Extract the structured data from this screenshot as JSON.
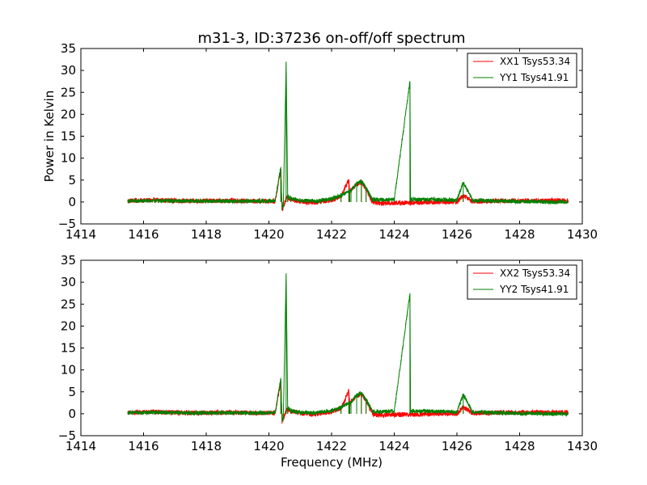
{
  "title": "m31-3, ID:37236 on-off/off spectrum",
  "chart_data": [
    {
      "type": "line",
      "title": "m31-3, ID:37236 on-off/off spectrum",
      "xlabel": "",
      "ylabel": "Power in Kelvin",
      "xlim": [
        1414,
        1430
      ],
      "ylim": [
        -5,
        35
      ],
      "xticks": [
        1414,
        1416,
        1418,
        1420,
        1422,
        1424,
        1426,
        1428,
        1430
      ],
      "yticks": [
        -5,
        0,
        5,
        10,
        15,
        20,
        25,
        30,
        35
      ],
      "legend_position": "top-right",
      "grid": false,
      "series": [
        {
          "name": "XX1 Tsys53.34",
          "color": "#ff0000",
          "x": [
            1415.5,
            1416.5,
            1417.5,
            1418.5,
            1419.5,
            1420.2,
            1420.38,
            1420.42,
            1420.46,
            1420.55,
            1420.6,
            1420.7,
            1421.0,
            1421.5,
            1422.0,
            1422.3,
            1422.55,
            1422.58,
            1422.62,
            1422.8,
            1422.95,
            1423.1,
            1423.3,
            1423.6,
            1424.0,
            1424.5,
            1425.0,
            1425.5,
            1426.0,
            1426.2,
            1426.5,
            1427.0,
            1427.5,
            1428.0,
            1428.5,
            1429.0,
            1429.55
          ],
          "values": [
            0.3,
            0.4,
            0.2,
            0.3,
            0.2,
            0.2,
            7.5,
            -1.8,
            -1.2,
            0.8,
            1.0,
            0.6,
            0.1,
            -0.1,
            0.5,
            1.2,
            5.2,
            2.0,
            2.8,
            4.0,
            4.5,
            3.0,
            0.0,
            -0.3,
            -0.2,
            -0.2,
            -0.1,
            0.0,
            0.0,
            1.5,
            0.1,
            0.2,
            0.3,
            0.3,
            0.3,
            0.3,
            0.3
          ]
        },
        {
          "name": "YY1 Tsys41.91",
          "color": "#008000",
          "x": [
            1415.5,
            1416.5,
            1417.5,
            1418.5,
            1419.5,
            1420.2,
            1420.38,
            1420.42,
            1420.46,
            1420.55,
            1420.6,
            1420.7,
            1421.0,
            1421.5,
            1422.0,
            1422.3,
            1422.55,
            1422.58,
            1422.62,
            1422.8,
            1422.95,
            1423.1,
            1423.3,
            1423.6,
            1424.0,
            1424.5,
            1424.52,
            1425.0,
            1425.5,
            1426.0,
            1426.2,
            1426.5,
            1427.0,
            1427.5,
            1428.0,
            1428.5,
            1429.0,
            1429.55
          ],
          "values": [
            0.2,
            0.3,
            0.2,
            0.2,
            0.2,
            0.2,
            8.0,
            -1.6,
            -1.0,
            32.0,
            1.2,
            0.8,
            0.3,
            0.2,
            0.7,
            1.5,
            2.5,
            2.3,
            2.6,
            4.2,
            4.8,
            3.2,
            0.6,
            0.5,
            0.6,
            27.5,
            0.6,
            0.6,
            0.5,
            0.4,
            4.5,
            0.4,
            0.3,
            0.2,
            0.1,
            0.1,
            0.0,
            0.0
          ]
        }
      ]
    },
    {
      "type": "line",
      "title": "",
      "xlabel": "Frequency (MHz)",
      "ylabel": "",
      "xlim": [
        1414,
        1430
      ],
      "ylim": [
        -5,
        35
      ],
      "xticks": [
        1414,
        1416,
        1418,
        1420,
        1422,
        1424,
        1426,
        1428,
        1430
      ],
      "yticks": [
        -5,
        0,
        5,
        10,
        15,
        20,
        25,
        30,
        35
      ],
      "legend_position": "top-right",
      "grid": false,
      "series": [
        {
          "name": "XX2 Tsys53.34",
          "color": "#ff0000",
          "x": [
            1415.5,
            1416.5,
            1417.5,
            1418.5,
            1419.5,
            1420.2,
            1420.38,
            1420.42,
            1420.46,
            1420.55,
            1420.6,
            1420.7,
            1421.0,
            1421.5,
            1422.0,
            1422.3,
            1422.55,
            1422.58,
            1422.62,
            1422.8,
            1422.95,
            1423.1,
            1423.3,
            1423.6,
            1424.0,
            1424.5,
            1425.0,
            1425.5,
            1426.0,
            1426.2,
            1426.5,
            1427.0,
            1427.5,
            1428.0,
            1428.5,
            1429.0,
            1429.55
          ],
          "values": [
            0.3,
            0.4,
            0.2,
            0.3,
            0.2,
            0.2,
            7.5,
            -1.8,
            -1.2,
            0.8,
            1.0,
            0.6,
            0.1,
            -0.1,
            0.5,
            1.2,
            5.2,
            2.0,
            2.8,
            4.0,
            4.5,
            3.0,
            0.0,
            -0.3,
            -0.2,
            -0.2,
            -0.1,
            0.0,
            0.0,
            1.5,
            0.1,
            0.2,
            0.3,
            0.3,
            0.3,
            0.3,
            0.3
          ]
        },
        {
          "name": "YY2 Tsys41.91",
          "color": "#008000",
          "x": [
            1415.5,
            1416.5,
            1417.5,
            1418.5,
            1419.5,
            1420.2,
            1420.38,
            1420.42,
            1420.46,
            1420.55,
            1420.6,
            1420.7,
            1421.0,
            1421.5,
            1422.0,
            1422.3,
            1422.55,
            1422.58,
            1422.62,
            1422.8,
            1422.95,
            1423.1,
            1423.3,
            1423.6,
            1424.0,
            1424.5,
            1424.52,
            1425.0,
            1425.5,
            1426.0,
            1426.2,
            1426.5,
            1427.0,
            1427.5,
            1428.0,
            1428.5,
            1429.0,
            1429.55
          ],
          "values": [
            0.2,
            0.3,
            0.2,
            0.2,
            0.2,
            0.2,
            8.0,
            -1.6,
            -1.0,
            32.0,
            1.2,
            0.8,
            0.3,
            0.2,
            0.7,
            1.5,
            2.5,
            2.3,
            2.6,
            4.2,
            4.8,
            3.2,
            0.6,
            0.5,
            0.6,
            27.5,
            0.6,
            0.6,
            0.5,
            0.4,
            4.5,
            0.4,
            0.3,
            0.2,
            0.1,
            0.1,
            0.0,
            0.0
          ]
        }
      ]
    }
  ]
}
